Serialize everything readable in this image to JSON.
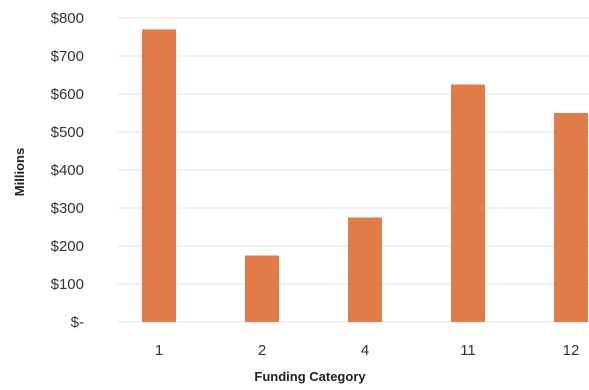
{
  "chart_data": {
    "type": "bar",
    "title": "",
    "xlabel": "Funding Category",
    "ylabel": "Millions",
    "categories": [
      "1",
      "2",
      "4",
      "11",
      "12"
    ],
    "values": [
      770,
      175,
      275,
      625,
      550
    ],
    "ylim": [
      0,
      800
    ],
    "yticks": [
      0,
      100,
      200,
      300,
      400,
      500,
      600,
      700,
      800
    ],
    "ytick_labels": [
      "$-",
      "$100",
      "$200",
      "$300",
      "$400",
      "$500",
      "$600",
      "$700",
      "$800"
    ],
    "grid": true,
    "legend": "none",
    "colors": {
      "bar": "#E07B4A",
      "grid": "#E6E6E6",
      "text": "#333333"
    }
  }
}
